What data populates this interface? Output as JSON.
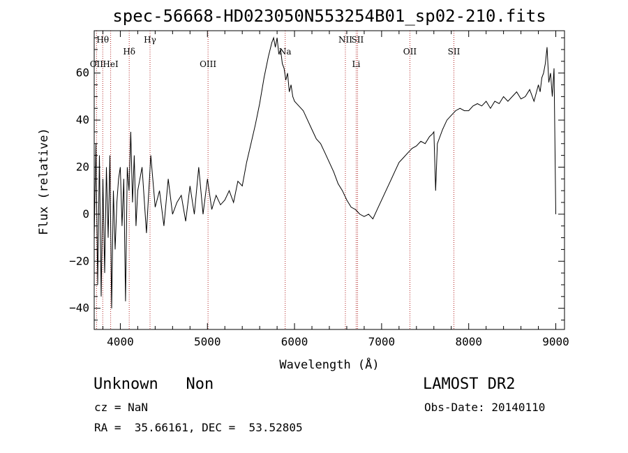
{
  "chart_data": {
    "type": "line",
    "title": "spec-56668-HD023050N553254B01_sp02-210.fits",
    "xlabel": "Wavelength (Å)",
    "ylabel": "Flux (relative)",
    "xlim": [
      3700,
      9100
    ],
    "ylim": [
      -49,
      78
    ],
    "xticks": [
      4000,
      5000,
      6000,
      7000,
      8000,
      9000
    ],
    "yticks": [
      -40,
      -20,
      0,
      20,
      40,
      60
    ],
    "grid": false,
    "series": [
      {
        "x": [
          3700,
          3720,
          3740,
          3760,
          3780,
          3800,
          3820,
          3840,
          3860,
          3880,
          3900,
          3920,
          3940,
          3960,
          3980,
          4000,
          4020,
          4040,
          4060,
          4080,
          4100,
          4120,
          4140,
          4160,
          4180,
          4200,
          4250,
          4300,
          4350,
          4400,
          4450,
          4500,
          4550,
          4600,
          4650,
          4700,
          4750,
          4800,
          4850,
          4900,
          4950,
          5000,
          5050,
          5100,
          5150,
          5200,
          5250,
          5300,
          5350,
          5400,
          5450,
          5500,
          5550,
          5600,
          5650,
          5700,
          5720,
          5740,
          5760,
          5780,
          5800,
          5820,
          5840,
          5860,
          5880,
          5900,
          5920,
          5940,
          5960,
          5980,
          6000,
          6050,
          6100,
          6150,
          6200,
          6250,
          6300,
          6350,
          6400,
          6450,
          6500,
          6550,
          6600,
          6650,
          6700,
          6750,
          6800,
          6850,
          6900,
          6950,
          7000,
          7050,
          7100,
          7150,
          7200,
          7250,
          7300,
          7350,
          7400,
          7450,
          7500,
          7550,
          7580,
          7600,
          7620,
          7640,
          7660,
          7700,
          7750,
          7800,
          7850,
          7900,
          7950,
          8000,
          8050,
          8100,
          8150,
          8200,
          8250,
          8300,
          8350,
          8400,
          8450,
          8500,
          8550,
          8600,
          8650,
          8700,
          8750,
          8800,
          8820,
          8840,
          8860,
          8880,
          8900,
          8920,
          8940,
          8960,
          8980,
          9000
        ],
        "y": [
          -10,
          30,
          -30,
          25,
          -35,
          15,
          -25,
          20,
          -10,
          25,
          -40,
          10,
          -15,
          5,
          15,
          20,
          -5,
          15,
          -37,
          20,
          10,
          35,
          5,
          25,
          -5,
          10,
          20,
          -8,
          25,
          3,
          10,
          -5,
          15,
          0,
          5,
          8,
          -3,
          12,
          0,
          20,
          0,
          15,
          2,
          8,
          4,
          6,
          10,
          5,
          14,
          12,
          22,
          30,
          38,
          47,
          58,
          67,
          70,
          73,
          75,
          71,
          75,
          68,
          70,
          64,
          62,
          57,
          60,
          52,
          55,
          50,
          48,
          46,
          44,
          40,
          36,
          32,
          30,
          26,
          22,
          18,
          13,
          10,
          6,
          3,
          2,
          0,
          -1,
          0,
          -2,
          2,
          6,
          10,
          14,
          18,
          22,
          24,
          26,
          28,
          29,
          31,
          30,
          33,
          34,
          35,
          10,
          30,
          32,
          36,
          40,
          42,
          44,
          45,
          44,
          44,
          46,
          47,
          46,
          48,
          45,
          48,
          47,
          50,
          48,
          50,
          52,
          49,
          50,
          53,
          48,
          55,
          52,
          58,
          60,
          64,
          71,
          56,
          60,
          50,
          62,
          0
        ]
      }
    ],
    "line_markers": [
      {
        "label": "Hθ",
        "x": 3798,
        "row": 1
      },
      {
        "label": "OII",
        "x": 3727,
        "row": 3
      },
      {
        "label": "HeI",
        "x": 3889,
        "row": 3
      },
      {
        "label": "Hδ",
        "x": 4102,
        "row": 2
      },
      {
        "label": "Hγ",
        "x": 4341,
        "row": 1
      },
      {
        "label": "OIII",
        "x": 5007,
        "row": 3
      },
      {
        "label": "Na",
        "x": 5893,
        "row": 2
      },
      {
        "label": "NII",
        "x": 6584,
        "row": 1
      },
      {
        "label": "SII",
        "x": 6724,
        "row": 1
      },
      {
        "label": "Li",
        "x": 6708,
        "row": 3
      },
      {
        "label": "OII",
        "x": 7325,
        "row": 2
      },
      {
        "label": "SII",
        "x": 7830,
        "row": 2
      }
    ],
    "marker_color": "#b22222"
  },
  "footer": {
    "object": "Unknown   Non",
    "survey": "LAMOST DR2",
    "cz": "cz = NaN",
    "obs_date": "Obs-Date: 20140110",
    "coords": "RA =  35.66161, DEC =  53.52805"
  }
}
